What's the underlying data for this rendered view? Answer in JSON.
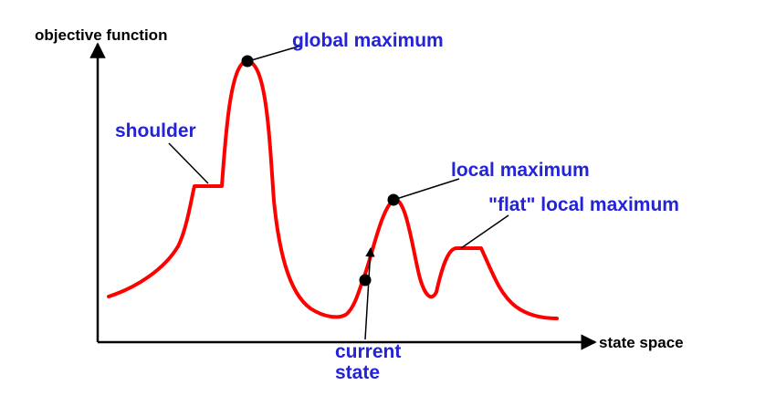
{
  "colors": {
    "background": "#ffffff",
    "axis": "#000000",
    "curve": "#ff0000",
    "annotation_text": "#2323d8",
    "leader_line": "#000000",
    "marker": "#000000"
  },
  "axes": {
    "y_label": "objective function",
    "x_label": "state space"
  },
  "annotations": {
    "global_maximum": "global maximum",
    "shoulder": "shoulder",
    "local_maximum": "local maximum",
    "flat_local_maximum": "\"flat\" local maximum",
    "current_state_line1": "current",
    "current_state_line2": "state"
  }
}
